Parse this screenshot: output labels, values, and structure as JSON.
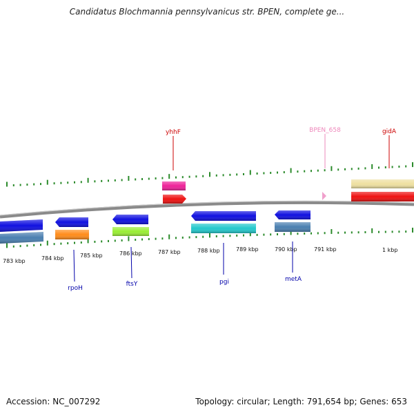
{
  "title": "Candidatus Blochmannia pennsylvanicus str. BPEN, complete ge...",
  "footer": {
    "accession": "Accession: NC_007292",
    "summary": "Topology: circular; Length: 791,654 bp; Genes: 653"
  },
  "scale_labels": [
    "783 kbp",
    "784 kbp",
    "785 kbp",
    "786 kbp",
    "787 kbp",
    "788 kbp",
    "789 kbp",
    "790 kbp",
    "791 kbp",
    "1 kbp"
  ],
  "top_labels": [
    {
      "text": "yhhF",
      "color": "#cc0000"
    },
    {
      "text": "BPEN_658",
      "color": "#ee88bb"
    },
    {
      "text": "gidA",
      "color": "#cc0000"
    }
  ],
  "bottom_labels": [
    {
      "text": "rpoH",
      "color": "#0000aa"
    },
    {
      "text": "ftsY",
      "color": "#0000aa"
    },
    {
      "text": "pgi",
      "color": "#0000aa"
    },
    {
      "text": "metA",
      "color": "#0000aa"
    }
  ],
  "colors": {
    "backbone": "#888888",
    "ticks": "#2a8a2a",
    "blue": "#1010e0",
    "steel": "#4a7fb0",
    "orange": "#ff8c1a",
    "lime": "#99ee33",
    "cyan": "#22c8cc",
    "magenta": "#ee2299",
    "red": "#ee1111",
    "khaki": "#eee0a0",
    "pink": "#f0a0cc"
  }
}
